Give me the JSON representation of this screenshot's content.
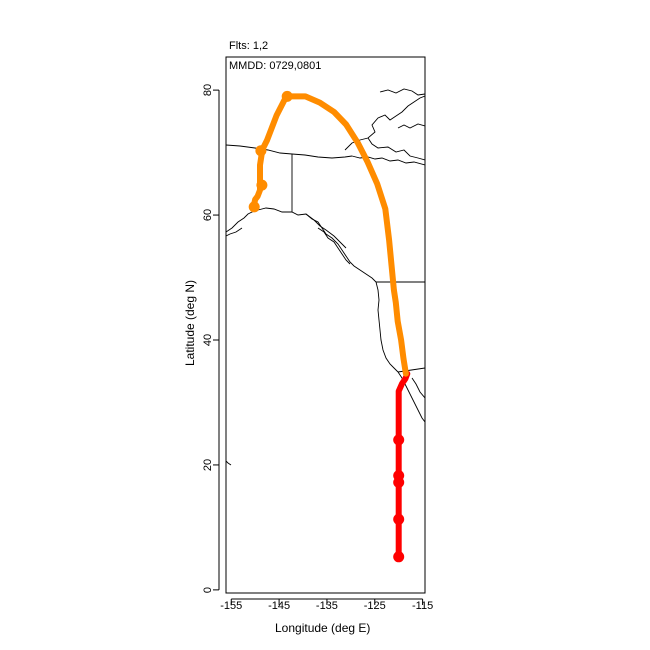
{
  "header": {
    "flights_text": "Flts: 1,2",
    "dates_text": "MMDD: 0729,0801"
  },
  "chart_data": {
    "type": "line",
    "xlabel": "Longitude (deg E)",
    "ylabel": "Latitude (deg N)",
    "xlim": [
      -156.1,
      -114.5
    ],
    "ylim": [
      -0.5,
      85.3
    ],
    "xticks": [
      -155,
      -145,
      -135,
      -125,
      -115
    ],
    "yticks": [
      0,
      20,
      40,
      60,
      80
    ],
    "xtick_labels": [
      "-155",
      "-145",
      "-135",
      "-125",
      "-115"
    ],
    "ytick_labels": [
      "0",
      "20",
      "40",
      "60",
      "80"
    ],
    "grid": false,
    "basemap": "coastlines and borders (Alaska, Canada, US west coast)",
    "colors": {
      "flight_1": "#ff0000",
      "flight_2": "#ff8c00",
      "map": "#000000"
    },
    "series": [
      {
        "color": "#ff0000",
        "x": [
          -118.2,
          -118.6,
          -119.3,
          -120.0,
          -120.0,
          -120.0,
          -120.0,
          -120.0,
          -120.0,
          -120.0,
          -120.0,
          -120.0
        ],
        "y": [
          34.6,
          33.8,
          33.0,
          31.8,
          28.0,
          24.0,
          20.0,
          18.0,
          17.0,
          14.0,
          11.0,
          5.3
        ],
        "markers": [
          {
            "x": -120.0,
            "y": 24.0
          },
          {
            "x": -120.0,
            "y": 18.3
          },
          {
            "x": -120.0,
            "y": 17.2
          },
          {
            "x": -120.0,
            "y": 11.3
          },
          {
            "x": -120.0,
            "y": 5.3
          }
        ]
      },
      {
        "color": "#ff8c00",
        "x": [
          -118.5,
          -119.0,
          -119.5,
          -120.2,
          -120.6,
          -121.0,
          -121.5,
          -122.0,
          -122.8,
          -124.5,
          -126.5,
          -128.5,
          -131.0,
          -133.5,
          -136.5,
          -139.5,
          -141.5,
          -143.5,
          -145.5,
          -147.0,
          -147.5,
          -148.5,
          -149.0,
          -149.0,
          -149.0,
          -149.5,
          -150.0,
          -150.3,
          -150.5
        ],
        "y": [
          34.6,
          37.0,
          40.0,
          43.0,
          46.0,
          48.0,
          52.0,
          56.0,
          61.0,
          65.0,
          68.5,
          71.5,
          74.5,
          76.5,
          78.0,
          79.0,
          79.0,
          79.0,
          76.0,
          73.0,
          72.0,
          70.5,
          68.0,
          65.0,
          64.0,
          63.0,
          62.5,
          61.5,
          61.2
        ],
        "markers": [
          {
            "x": -143.3,
            "y": 79.0
          },
          {
            "x": -148.8,
            "y": 70.3
          },
          {
            "x": -148.6,
            "y": 64.8
          },
          {
            "x": -150.2,
            "y": 61.3
          }
        ]
      }
    ]
  }
}
